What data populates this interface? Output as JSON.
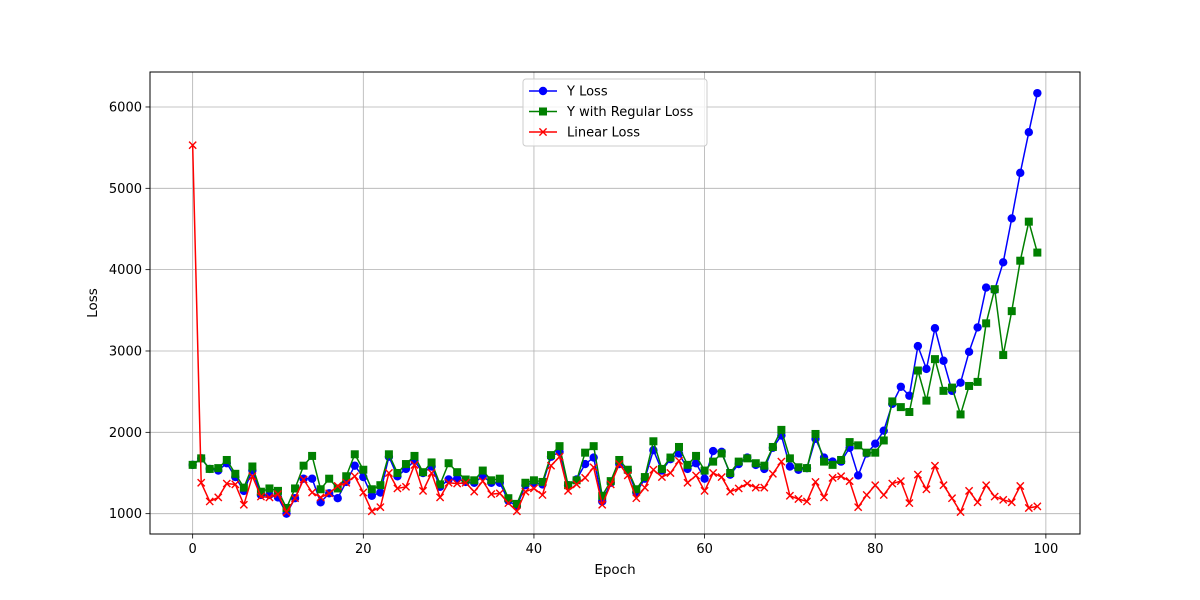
{
  "chart_data": {
    "type": "line",
    "title": "",
    "xlabel": "Epoch",
    "ylabel": "Loss",
    "xlim": [
      -5,
      104
    ],
    "ylim": [
      750,
      6430
    ],
    "xticks": [
      0,
      20,
      40,
      60,
      80,
      100
    ],
    "yticks": [
      1000,
      2000,
      3000,
      4000,
      5000,
      6000
    ],
    "grid": true,
    "legend_position": "upper center",
    "x": [
      0,
      1,
      2,
      3,
      4,
      5,
      6,
      7,
      8,
      9,
      10,
      11,
      12,
      13,
      14,
      15,
      16,
      17,
      18,
      19,
      20,
      21,
      22,
      23,
      24,
      25,
      26,
      27,
      28,
      29,
      30,
      31,
      32,
      33,
      34,
      35,
      36,
      37,
      38,
      39,
      40,
      41,
      42,
      43,
      44,
      45,
      46,
      47,
      48,
      49,
      50,
      51,
      52,
      53,
      54,
      55,
      56,
      57,
      58,
      59,
      60,
      61,
      62,
      63,
      64,
      65,
      66,
      67,
      68,
      69,
      70,
      71,
      72,
      73,
      74,
      75,
      76,
      77,
      78,
      79,
      80,
      81,
      82,
      83,
      84,
      85,
      86,
      87,
      88,
      89,
      90,
      91,
      92,
      93,
      94,
      95,
      96,
      97,
      98,
      99
    ],
    "series": [
      {
        "name": "Y Loss",
        "color": "#0000ff",
        "marker": "circle",
        "values": [
          1600,
          1680,
          1550,
          1530,
          1620,
          1450,
          1280,
          1530,
          1230,
          1230,
          1200,
          1000,
          1190,
          1430,
          1430,
          1140,
          1250,
          1190,
          1390,
          1590,
          1450,
          1220,
          1260,
          1700,
          1460,
          1550,
          1650,
          1500,
          1580,
          1330,
          1420,
          1430,
          1390,
          1380,
          1460,
          1380,
          1380,
          1160,
          1090,
          1350,
          1380,
          1360,
          1700,
          1760,
          1350,
          1420,
          1610,
          1690,
          1150,
          1380,
          1610,
          1530,
          1260,
          1430,
          1780,
          1530,
          1670,
          1740,
          1550,
          1620,
          1430,
          1770,
          1760,
          1480,
          1610,
          1690,
          1600,
          1550,
          1810,
          1960,
          1580,
          1540,
          1560,
          1920,
          1690,
          1640,
          1640,
          1810,
          1470,
          1740,
          1860,
          2020,
          2350,
          2560,
          2450,
          3060,
          2780,
          3280,
          2880,
          2510,
          2610,
          2990,
          3290,
          3780,
          3750,
          4090,
          4630,
          5190,
          5690,
          6170
        ]
      },
      {
        "name": "Y with Regular Loss",
        "color": "#008000",
        "marker": "square",
        "values": [
          1600,
          1680,
          1550,
          1560,
          1660,
          1490,
          1320,
          1580,
          1270,
          1310,
          1280,
          1070,
          1310,
          1590,
          1710,
          1300,
          1430,
          1310,
          1460,
          1730,
          1540,
          1300,
          1350,
          1730,
          1500,
          1610,
          1710,
          1510,
          1630,
          1360,
          1620,
          1510,
          1420,
          1410,
          1530,
          1410,
          1430,
          1190,
          1120,
          1380,
          1410,
          1390,
          1720,
          1830,
          1350,
          1410,
          1750,
          1830,
          1220,
          1400,
          1660,
          1540,
          1300,
          1450,
          1890,
          1550,
          1690,
          1820,
          1600,
          1710,
          1530,
          1640,
          1740,
          1500,
          1640,
          1680,
          1620,
          1590,
          1820,
          2030,
          1680,
          1570,
          1560,
          1980,
          1640,
          1600,
          1660,
          1880,
          1840,
          1750,
          1750,
          1900,
          2380,
          2310,
          2250,
          2760,
          2390,
          2900,
          2510,
          2550,
          2220,
          2570,
          2620,
          3340,
          3760,
          2950,
          3490,
          4110,
          4590,
          4210
        ]
      },
      {
        "name": "Linear Loss",
        "color": "#ff0000",
        "marker": "x",
        "values": [
          5530,
          1380,
          1150,
          1200,
          1370,
          1360,
          1110,
          1460,
          1210,
          1200,
          1240,
          1020,
          1190,
          1420,
          1260,
          1200,
          1250,
          1340,
          1380,
          1460,
          1260,
          1030,
          1080,
          1500,
          1310,
          1330,
          1600,
          1280,
          1500,
          1200,
          1380,
          1370,
          1380,
          1270,
          1400,
          1240,
          1250,
          1130,
          1030,
          1270,
          1310,
          1230,
          1590,
          1700,
          1280,
          1360,
          1440,
          1570,
          1110,
          1360,
          1610,
          1470,
          1190,
          1320,
          1540,
          1450,
          1500,
          1650,
          1380,
          1470,
          1280,
          1500,
          1450,
          1270,
          1310,
          1370,
          1320,
          1320,
          1490,
          1640,
          1220,
          1180,
          1150,
          1390,
          1200,
          1440,
          1460,
          1400,
          1080,
          1230,
          1350,
          1230,
          1370,
          1400,
          1130,
          1480,
          1300,
          1590,
          1350,
          1190,
          1020,
          1280,
          1140,
          1350,
          1210,
          1170,
          1140,
          1340,
          1070,
          1090
        ]
      }
    ]
  }
}
